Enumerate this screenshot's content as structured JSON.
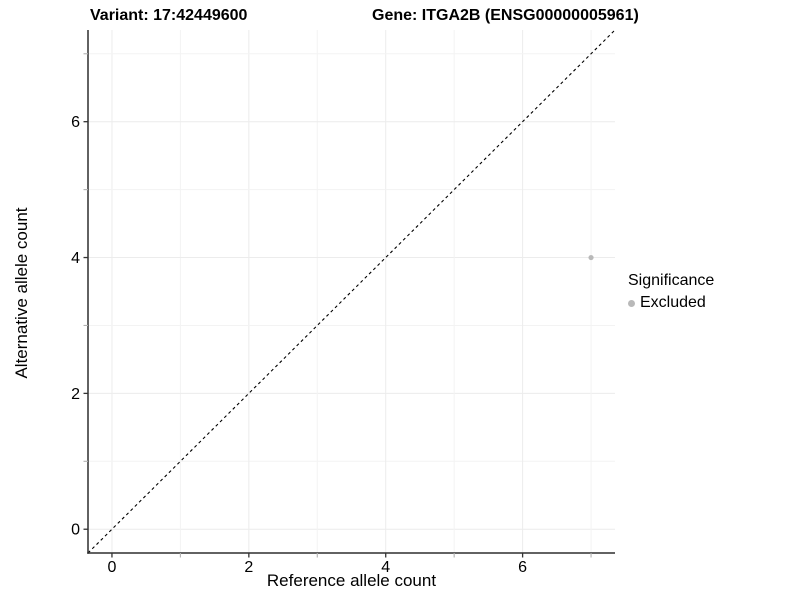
{
  "chart_data": {
    "type": "scatter",
    "title_left": "Variant: 17:42449600",
    "title_right": "Gene: ITGA2B (ENSG00000005961)",
    "xlabel": "Reference allele count",
    "ylabel": "Alternative allele count",
    "xlim": [
      -0.35,
      7.35
    ],
    "ylim": [
      -0.35,
      7.35
    ],
    "x_major_ticks": [
      0,
      2,
      4,
      6
    ],
    "y_major_ticks": [
      0,
      2,
      4,
      6
    ],
    "x_minor_ticks": [
      1,
      3,
      5,
      7
    ],
    "y_minor_ticks": [
      1,
      3,
      5,
      7
    ],
    "gridline_positions": [
      0,
      1,
      2,
      3,
      4,
      5,
      6,
      7
    ],
    "grid_on": true,
    "abline": {
      "slope": 1,
      "intercept": 0,
      "style": "dashed",
      "color": "#000000"
    },
    "series": [
      {
        "name": "Excluded",
        "color": "#b9b9b9",
        "points": [
          {
            "x": 7,
            "y": 4
          }
        ]
      }
    ],
    "legend": {
      "position": "right",
      "title": "Significance",
      "items": [
        {
          "label": "Excluded",
          "color": "#b9b9b9"
        }
      ]
    },
    "colors": {
      "axis_line": "#2f2f2f",
      "major_tick": "#333333",
      "minor_tick": "#b0b0b0",
      "gridline": "#ececec",
      "minor_gridline": "#f3f3f3",
      "tick_label": "#000000",
      "background": "#ffffff"
    }
  }
}
